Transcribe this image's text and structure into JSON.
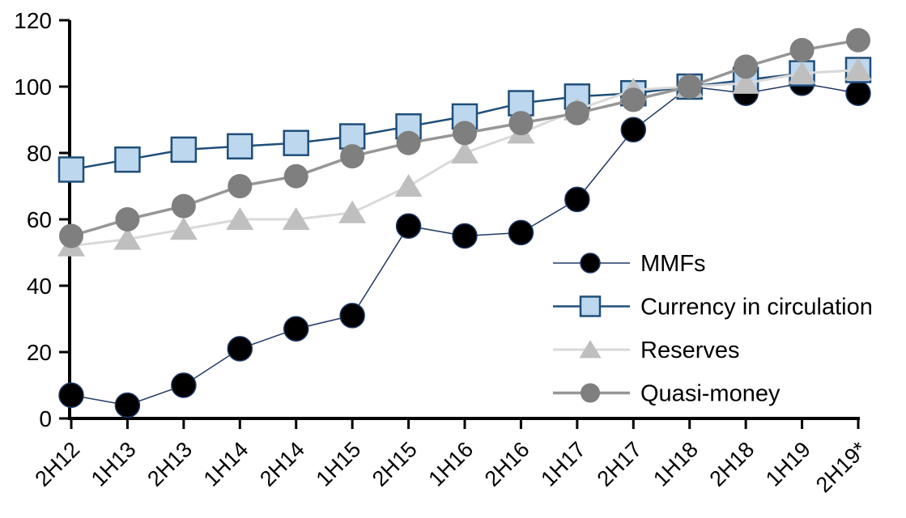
{
  "chart_data": {
    "type": "line",
    "title": "",
    "xlabel": "",
    "ylabel": "",
    "grid": false,
    "background_color": "#FFFFFF",
    "axis_color": "#000000",
    "legend_position": "inside-right",
    "categories": [
      "2H12",
      "1H13",
      "2H13",
      "1H14",
      "2H14",
      "1H15",
      "2H15",
      "1H16",
      "2H16",
      "1H17",
      "2H17",
      "1H18",
      "2H18",
      "1H19",
      "2H19*"
    ],
    "y_axis": {
      "min": 0,
      "max": 120,
      "step": 20,
      "tick_labels": [
        "0",
        "20",
        "40",
        "60",
        "80",
        "100",
        "120"
      ]
    },
    "series": [
      {
        "name": "MMFs",
        "marker": "circle",
        "marker_fill": "#000000",
        "marker_stroke": "#1F3864",
        "marker_stroke_width": 1.5,
        "line_color": "#1F3864",
        "line_width": 1.5,
        "values": [
          7,
          4,
          10,
          21,
          27,
          31,
          58,
          55,
          56,
          66,
          87,
          100,
          98,
          101,
          98
        ]
      },
      {
        "name": "Currency in circulation",
        "marker": "square",
        "marker_fill": "#BDD7EE",
        "marker_stroke": "#1F4E79",
        "marker_stroke_width": 2.5,
        "line_color": "#1F4E79",
        "line_width": 2.5,
        "values": [
          75,
          78,
          81,
          82,
          83,
          85,
          88,
          91,
          95,
          97,
          98,
          100,
          102,
          104,
          105
        ]
      },
      {
        "name": "Reserves",
        "marker": "triangle",
        "marker_fill": "#BFBFBF",
        "marker_stroke": "none",
        "marker_stroke_width": 0,
        "line_color": "#D9D9D9",
        "line_width": 3,
        "values": [
          52,
          54,
          57,
          60,
          60,
          62,
          70,
          80,
          86,
          93,
          99,
          100,
          101,
          104,
          105
        ]
      },
      {
        "name": "Quasi-money",
        "marker": "circle",
        "marker_fill": "#7F7F7F",
        "marker_stroke": "none",
        "marker_stroke_width": 0,
        "line_color": "#969696",
        "line_width": 3.5,
        "values": [
          55,
          60,
          64,
          70,
          73,
          79,
          83,
          86,
          89,
          92,
          96,
          100,
          106,
          111,
          114
        ]
      }
    ]
  }
}
